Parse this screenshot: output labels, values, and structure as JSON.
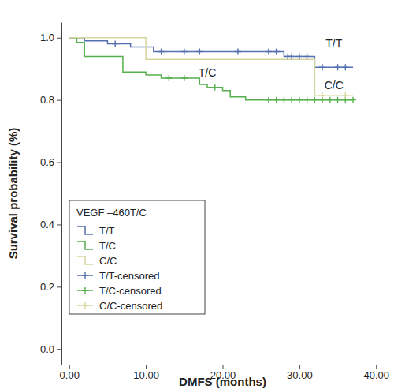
{
  "chart_data": {
    "type": "line",
    "x_label": "DMFS (months)",
    "y_label": "Survival probability (%)",
    "legend_title": "VEGF –460T/C",
    "legend": "lower left",
    "grid": false,
    "xlim": [
      -1,
      41
    ],
    "ylim": [
      -0.05,
      1.05
    ],
    "xticks": [
      {
        "value": 0,
        "label": "0.00"
      },
      {
        "value": 10,
        "label": "10.00"
      },
      {
        "value": 20,
        "label": "20.00"
      },
      {
        "value": 30,
        "label": "30.00"
      },
      {
        "value": 40,
        "label": "40.00"
      }
    ],
    "yticks": [
      {
        "value": 0,
        "label": "0.0"
      },
      {
        "value": 0.2,
        "label": "0.2"
      },
      {
        "value": 0.4,
        "label": "0.4"
      },
      {
        "value": 0.6,
        "label": "0.6"
      },
      {
        "value": 0.8,
        "label": "0.8"
      },
      {
        "value": 1,
        "label": "1.0"
      }
    ],
    "series": [
      {
        "name": "T/T",
        "color": "#5470b0",
        "type": "line",
        "line_style": "step",
        "x": [
          0,
          2,
          5,
          8,
          11,
          28,
          32,
          37
        ],
        "values": [
          1.0,
          0.99,
          0.98,
          0.97,
          0.955,
          0.94,
          0.905,
          0.905
        ]
      },
      {
        "name": "T/C",
        "color": "#55b04d",
        "type": "line",
        "line_style": "step",
        "x": [
          0,
          1,
          2,
          7,
          10,
          12,
          17,
          18,
          20,
          21,
          23,
          37
        ],
        "values": [
          1.0,
          0.985,
          0.94,
          0.89,
          0.88,
          0.87,
          0.85,
          0.84,
          0.83,
          0.81,
          0.8,
          0.8
        ]
      },
      {
        "name": "C/C",
        "color": "#d5d59c",
        "type": "line",
        "line_style": "step",
        "x": [
          0,
          10,
          32,
          37
        ],
        "values": [
          1.0,
          0.93,
          0.815,
          0.815
        ]
      },
      {
        "name": "T/T-censored",
        "color": "#5470b0",
        "type": "scatter",
        "marker": "plus",
        "x": [
          6,
          12,
          15,
          17,
          22,
          26,
          27,
          28.5,
          29,
          30,
          31,
          33,
          35,
          36
        ],
        "values": [
          0.98,
          0.955,
          0.955,
          0.955,
          0.955,
          0.955,
          0.955,
          0.94,
          0.94,
          0.94,
          0.94,
          0.905,
          0.905,
          0.905
        ]
      },
      {
        "name": "T/C-censored",
        "color": "#55b04d",
        "type": "scatter",
        "marker": "plus",
        "x": [
          13,
          15,
          19,
          26,
          27,
          28,
          29,
          30,
          31,
          32,
          33,
          34,
          35,
          36,
          37
        ],
        "values": [
          0.87,
          0.87,
          0.84,
          0.8,
          0.8,
          0.8,
          0.8,
          0.8,
          0.8,
          0.8,
          0.8,
          0.8,
          0.8,
          0.8,
          0.8
        ]
      },
      {
        "name": "C/C-censored",
        "color": "#d5d59c",
        "type": "scatter",
        "marker": "plus",
        "x": [
          33,
          36
        ],
        "values": [
          0.815,
          0.815
        ]
      }
    ],
    "annotations": [
      {
        "text": "T/T",
        "x": 34.5,
        "y": 0.97
      },
      {
        "text": "T/C",
        "x": 18,
        "y": 0.875
      },
      {
        "text": "C/C",
        "x": 34.5,
        "y": 0.835
      }
    ]
  }
}
